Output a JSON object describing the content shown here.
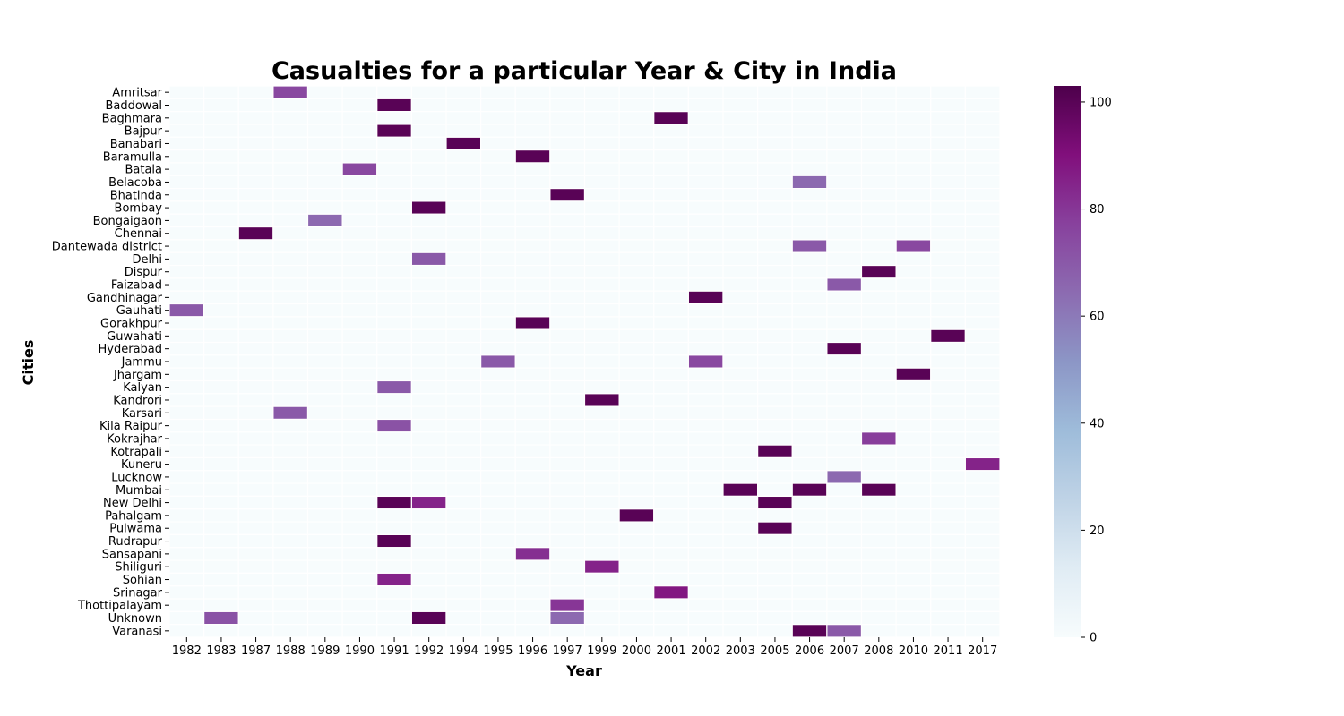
{
  "chart_data": {
    "type": "heatmap",
    "title": "Casualties for a particular Year & City in India",
    "xlabel": "Year",
    "ylabel": "Cities",
    "x": [
      "1982",
      "1983",
      "1987",
      "1988",
      "1989",
      "1990",
      "1991",
      "1992",
      "1994",
      "1995",
      "1996",
      "1997",
      "1999",
      "2000",
      "2001",
      "2002",
      "2003",
      "2005",
      "2006",
      "2007",
      "2008",
      "2010",
      "2011",
      "2017"
    ],
    "y": [
      "Amritsar",
      "Baddowal",
      "Baghmara",
      "Bajpur",
      "Banabari",
      "Baramulla",
      "Batala",
      "Belacoba",
      "Bhatinda",
      "Bombay",
      "Bongaigaon",
      "Chennai",
      "Dantewada district",
      "Delhi",
      "Dispur",
      "Faizabad",
      "Gandhinagar",
      "Gauhati",
      "Gorakhpur",
      "Guwahati",
      "Hyderabad",
      "Jammu",
      "Jhargam",
      "Kalyan",
      "Kandrori",
      "Karsari",
      "Kila Raipur",
      "Kokrajhar",
      "Kotrapali",
      "Kuneru",
      "Lucknow",
      "Mumbai",
      "New Delhi",
      "Pahalgam",
      "Pulwama",
      "Rudrapur",
      "Sansapani",
      "Shiliguri",
      "Sohian",
      "Srinagar",
      "Thottipalayam",
      "Unknown",
      "Varanasi"
    ],
    "cells": [
      {
        "city": "Amritsar",
        "year": "1988",
        "value": 75
      },
      {
        "city": "Baddowal",
        "year": "1991",
        "value": 100
      },
      {
        "city": "Baghmara",
        "year": "2001",
        "value": 100
      },
      {
        "city": "Bajpur",
        "year": "1991",
        "value": 100
      },
      {
        "city": "Banabari",
        "year": "1994",
        "value": 100
      },
      {
        "city": "Baramulla",
        "year": "1996",
        "value": 100
      },
      {
        "city": "Batala",
        "year": "1990",
        "value": 75
      },
      {
        "city": "Belacoba",
        "year": "2006",
        "value": 65
      },
      {
        "city": "Bhatinda",
        "year": "1997",
        "value": 100
      },
      {
        "city": "Bombay",
        "year": "1992",
        "value": 100
      },
      {
        "city": "Bongaigaon",
        "year": "1989",
        "value": 65
      },
      {
        "city": "Chennai",
        "year": "1987",
        "value": 100
      },
      {
        "city": "Dantewada district",
        "year": "2006",
        "value": 70
      },
      {
        "city": "Dantewada district",
        "year": "2010",
        "value": 75
      },
      {
        "city": "Delhi",
        "year": "1992",
        "value": 70
      },
      {
        "city": "Dispur",
        "year": "2008",
        "value": 100
      },
      {
        "city": "Faizabad",
        "year": "2007",
        "value": 70
      },
      {
        "city": "Gandhinagar",
        "year": "2002",
        "value": 100
      },
      {
        "city": "Gauhati",
        "year": "1982",
        "value": 70
      },
      {
        "city": "Gorakhpur",
        "year": "1996",
        "value": 100
      },
      {
        "city": "Guwahati",
        "year": "2011",
        "value": 100
      },
      {
        "city": "Hyderabad",
        "year": "2007",
        "value": 100
      },
      {
        "city": "Jammu",
        "year": "1995",
        "value": 70
      },
      {
        "city": "Jammu",
        "year": "2002",
        "value": 75
      },
      {
        "city": "Jhargam",
        "year": "2010",
        "value": 100
      },
      {
        "city": "Kalyan",
        "year": "1991",
        "value": 70
      },
      {
        "city": "Kandrori",
        "year": "1999",
        "value": 100
      },
      {
        "city": "Karsari",
        "year": "1988",
        "value": 70
      },
      {
        "city": "Kila Raipur",
        "year": "1991",
        "value": 72
      },
      {
        "city": "Kokrajhar",
        "year": "2008",
        "value": 78
      },
      {
        "city": "Kotrapali",
        "year": "2005",
        "value": 100
      },
      {
        "city": "Kuneru",
        "year": "2017",
        "value": 85
      },
      {
        "city": "Lucknow",
        "year": "2007",
        "value": 65
      },
      {
        "city": "Mumbai",
        "year": "2003",
        "value": 100
      },
      {
        "city": "Mumbai",
        "year": "2006",
        "value": 100
      },
      {
        "city": "Mumbai",
        "year": "2008",
        "value": 100
      },
      {
        "city": "New Delhi",
        "year": "1991",
        "value": 100
      },
      {
        "city": "New Delhi",
        "year": "1992",
        "value": 85
      },
      {
        "city": "New Delhi",
        "year": "2005",
        "value": 100
      },
      {
        "city": "Pahalgam",
        "year": "2000",
        "value": 100
      },
      {
        "city": "Pulwama",
        "year": "2005",
        "value": 100
      },
      {
        "city": "Rudrapur",
        "year": "1991",
        "value": 100
      },
      {
        "city": "Sansapani",
        "year": "1996",
        "value": 82
      },
      {
        "city": "Shiliguri",
        "year": "1999",
        "value": 85
      },
      {
        "city": "Sohian",
        "year": "1991",
        "value": 85
      },
      {
        "city": "Srinagar",
        "year": "2001",
        "value": 88
      },
      {
        "city": "Thottipalayam",
        "year": "1997",
        "value": 80
      },
      {
        "city": "Unknown",
        "year": "1983",
        "value": 72
      },
      {
        "city": "Unknown",
        "year": "1992",
        "value": 100
      },
      {
        "city": "Unknown",
        "year": "1997",
        "value": 65
      },
      {
        "city": "Varanasi",
        "year": "2006",
        "value": 100
      },
      {
        "city": "Varanasi",
        "year": "2007",
        "value": 70
      }
    ],
    "colorbar": {
      "colormap": "BuPu",
      "min": 0,
      "max": 103,
      "ticks": [
        0,
        20,
        40,
        60,
        80,
        100
      ],
      "colors": [
        "#f7fcfd",
        "#e0ecf4",
        "#bfd3e6",
        "#9ebcda",
        "#8c96c6",
        "#8c6bb1",
        "#88419d",
        "#810f7c",
        "#4d004b"
      ]
    },
    "grid": false,
    "cell_separator_color": "#ffffff"
  }
}
